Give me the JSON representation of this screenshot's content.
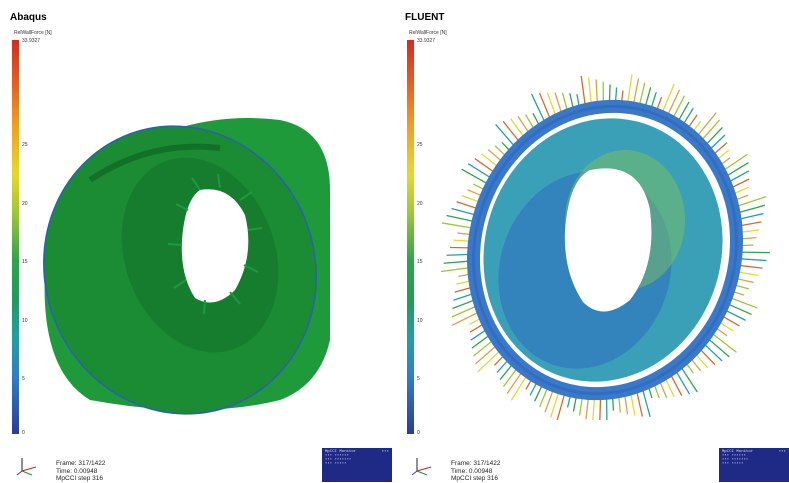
{
  "left": {
    "title": "Abaqus",
    "colorbar": {
      "variable": "RelWallForce [N]",
      "max": "33.9327",
      "ticks": [
        "25",
        "20",
        "15",
        "10",
        "5",
        "0"
      ]
    },
    "frame": "Frame:   317/1422",
    "time": "Time: 0.00948",
    "step": "MpCCI step 316"
  },
  "right": {
    "title": "FLUENT",
    "colorbar": {
      "variable": "RelWallForce [N]",
      "max": "33.9327",
      "ticks": [
        "25",
        "20",
        "15",
        "10",
        "5",
        "0"
      ]
    },
    "frame": "Frame:   317/1422",
    "time": "Time: 0.00948",
    "step": "MpCCI step 316"
  },
  "colors": {
    "cylinder_green": "#1f9a3a",
    "dark_green": "#14722a",
    "ring_blue": "#3a78c8",
    "monitor_bg": "#1e2a86"
  },
  "icons": [
    "axis-triad-icon"
  ]
}
